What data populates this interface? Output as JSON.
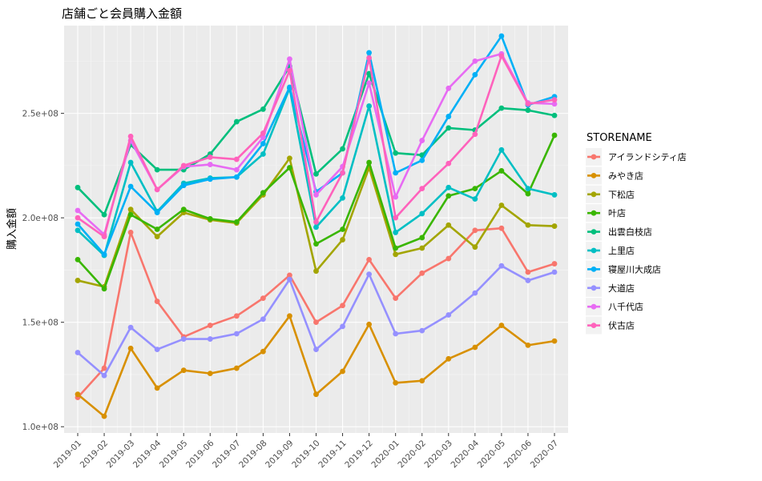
{
  "chart_data": {
    "type": "line",
    "title": "店舗ごと会員購入金額",
    "xlabel": "",
    "ylabel": "購入金額",
    "legend_title": "STORENAME",
    "legend_position": "right",
    "grid": true,
    "background": "#EBEBEB",
    "ylim": [
      97000000,
      292000000
    ],
    "y_ticks": [
      100000000,
      150000000,
      200000000,
      250000000
    ],
    "y_tick_labels": [
      "1.0e+08",
      "1.5e+08",
      "2.0e+08",
      "2.5e+08"
    ],
    "categories": [
      "2019-01",
      "2019-02",
      "2019-03",
      "2019-04",
      "2019-05",
      "2019-06",
      "2019-07",
      "2019-08",
      "2019-09",
      "2019-10",
      "2019-11",
      "2019-12",
      "2020-01",
      "2020-02",
      "2020-03",
      "2020-04",
      "2020-05",
      "2020-06",
      "2020-07"
    ],
    "series": [
      {
        "name": "アイランドシティ店",
        "color": "#F8766D",
        "values": [
          114000000,
          128000000,
          193000000,
          160000000,
          143000000,
          148500000,
          153000000,
          161500000,
          172500000,
          150000000,
          158000000,
          180000000,
          161500000,
          173500000,
          180500000,
          194000000,
          195000000,
          174000000,
          178000000
        ]
      },
      {
        "name": "みやき店",
        "color": "#D89000",
        "values": [
          115500000,
          105000000,
          137500000,
          118500000,
          127000000,
          125500000,
          128000000,
          136000000,
          153000000,
          115500000,
          126500000,
          149000000,
          121000000,
          122000000,
          132500000,
          138000000,
          148500000,
          139000000,
          141000000
        ]
      },
      {
        "name": "下松店",
        "color": "#A3A500",
        "values": [
          170000000,
          167000000,
          204000000,
          191000000,
          202500000,
          199000000,
          197500000,
          211000000,
          228500000,
          174500000,
          189500000,
          224000000,
          182500000,
          185500000,
          196500000,
          186000000,
          206000000,
          196500000,
          196000000
        ]
      },
      {
        "name": "叶店",
        "color": "#39B600",
        "values": [
          180000000,
          166000000,
          201500000,
          194500000,
          204000000,
          199500000,
          198000000,
          212000000,
          224000000,
          187500000,
          194500000,
          226500000,
          185500000,
          190500000,
          210500000,
          214000000,
          222500000,
          211500000,
          239500000
        ]
      },
      {
        "name": "出雲白枝店",
        "color": "#00BF7D",
        "values": [
          214500000,
          201500000,
          235000000,
          223000000,
          223000000,
          230500000,
          246000000,
          252000000,
          272500000,
          221000000,
          233000000,
          269000000,
          231000000,
          230000000,
          243000000,
          242000000,
          252500000,
          251500000,
          249000000
        ]
      },
      {
        "name": "上里店",
        "color": "#00BFC4",
        "values": [
          194000000,
          182000000,
          226500000,
          203000000,
          216500000,
          219000000,
          219500000,
          230500000,
          262000000,
          195500000,
          209500000,
          253500000,
          193000000,
          202000000,
          214500000,
          209000000,
          232500000,
          214000000,
          211000000
        ]
      },
      {
        "name": "寝屋川大成店",
        "color": "#00B0F6",
        "values": [
          197000000,
          182500000,
          215000000,
          202500000,
          215500000,
          218500000,
          219500000,
          235500000,
          262500000,
          212500000,
          221500000,
          279000000,
          221500000,
          227500000,
          248500000,
          268500000,
          287000000,
          254000000,
          258000000
        ]
      },
      {
        "name": "大道店",
        "color": "#9590FF",
        "values": [
          135500000,
          124500000,
          147500000,
          137000000,
          142000000,
          142000000,
          144500000,
          151500000,
          170500000,
          137000000,
          148000000,
          173000000,
          144500000,
          146000000,
          153500000,
          164000000,
          177000000,
          170000000,
          174000000
        ]
      },
      {
        "name": "八千代店",
        "color": "#E76BF3",
        "values": [
          203500000,
          192000000,
          237000000,
          213500000,
          224500000,
          225500000,
          223000000,
          238500000,
          276000000,
          211000000,
          224500000,
          264500000,
          210000000,
          237000000,
          262000000,
          275000000,
          278500000,
          255000000,
          254500000
        ]
      },
      {
        "name": "伏古店",
        "color": "#FF62BC",
        "values": [
          200000000,
          191000000,
          239000000,
          213500000,
          225000000,
          229000000,
          228000000,
          240500000,
          270500000,
          198000000,
          221500000,
          276500000,
          200000000,
          214000000,
          226000000,
          240000000,
          277500000,
          254500000,
          256500000
        ]
      }
    ]
  }
}
